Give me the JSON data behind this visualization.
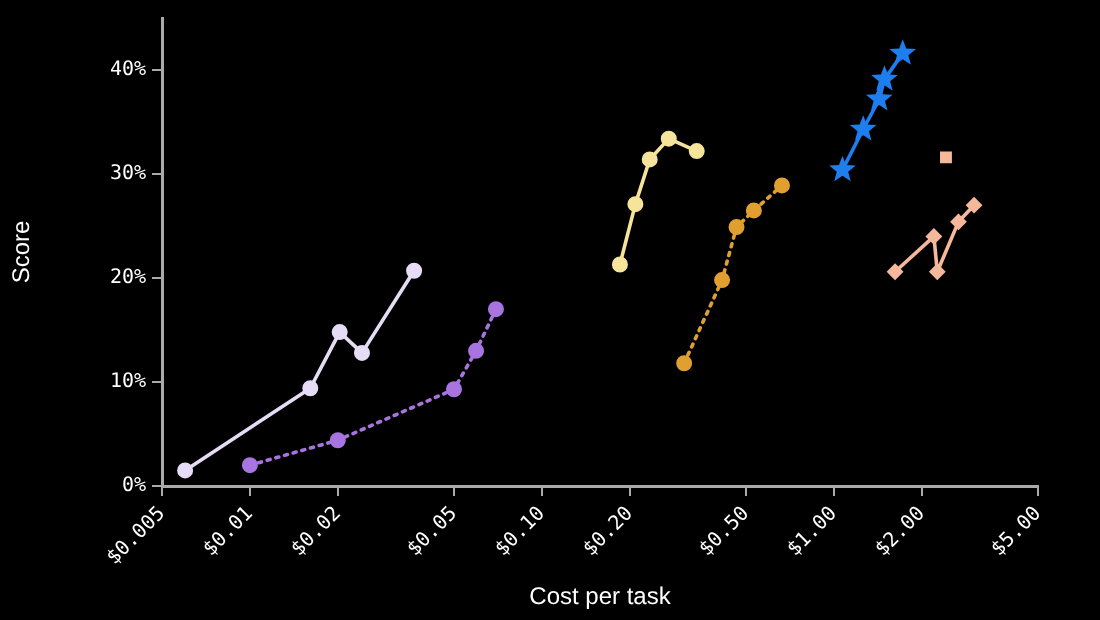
{
  "chart_data": {
    "type": "line",
    "xlabel": "Cost per task",
    "ylabel": "Score",
    "log": "x",
    "grid": false,
    "legend": false,
    "xlim": [
      0.005,
      5
    ],
    "xticks": [
      {
        "value": 0.005,
        "label": "$0.005"
      },
      {
        "value": 0.01,
        "label": "$0.01"
      },
      {
        "value": 0.02,
        "label": "$0.02"
      },
      {
        "value": 0.05,
        "label": "$0.05"
      },
      {
        "value": 0.1,
        "label": "$0.10"
      },
      {
        "value": 0.2,
        "label": "$0.20"
      },
      {
        "value": 0.5,
        "label": "$0.50"
      },
      {
        "value": 1,
        "label": "$1.00"
      },
      {
        "value": 2,
        "label": "$2.00"
      },
      {
        "value": 5,
        "label": "$5.00"
      }
    ],
    "ylim": [
      0,
      45
    ],
    "yticks": [
      {
        "value": 0,
        "label": "0%"
      },
      {
        "value": 10,
        "label": "10%"
      },
      {
        "value": 20,
        "label": "20%"
      },
      {
        "value": 30,
        "label": "30%"
      },
      {
        "value": 40,
        "label": "40%"
      }
    ],
    "series": [
      {
        "color": "#e6dcf5",
        "marker": "circle",
        "line_style": "solid",
        "x": [
          0.006,
          0.0161,
          0.0203,
          0.0242,
          0.0365
        ],
        "values": [
          1.5,
          9.4,
          14.8,
          12.8,
          20.7
        ]
      },
      {
        "color": "#a874e0",
        "marker": "circle",
        "line_style": "dotted",
        "x": [
          0.01,
          0.02,
          0.05,
          0.0595,
          0.0696
        ],
        "values": [
          2.0,
          4.4,
          9.3,
          13.0,
          17.0
        ]
      },
      {
        "color": "#f5e49a",
        "marker": "circle",
        "line_style": "solid",
        "x": [
          0.185,
          0.209,
          0.234,
          0.272,
          0.339
        ],
        "values": [
          21.3,
          27.1,
          31.4,
          33.4,
          32.2
        ]
      },
      {
        "color": "#e0a030",
        "marker": "circle",
        "line_style": "dotted",
        "x": [
          0.307,
          0.414,
          0.464,
          0.532,
          0.664
        ],
        "values": [
          11.8,
          19.8,
          24.9,
          26.5,
          28.9
        ]
      },
      {
        "color": "#1e7ef0",
        "marker": "star",
        "line_style": "solid",
        "x": [
          1.07,
          1.26,
          1.43,
          1.49,
          1.72
        ],
        "values": [
          30.4,
          34.3,
          37.2,
          39.1,
          41.6
        ]
      },
      {
        "color": "#f5b89a",
        "marker": "diamond",
        "line_style": "solid",
        "x": [
          1.62,
          2.2,
          2.26,
          2.67,
          3.02
        ],
        "values": [
          20.6,
          24.0,
          20.6,
          25.4,
          27.0
        ]
      },
      {
        "type": "scatter",
        "color": "#f5b89a",
        "marker": "square",
        "x": [
          2.42
        ],
        "values": [
          31.6
        ]
      }
    ]
  }
}
